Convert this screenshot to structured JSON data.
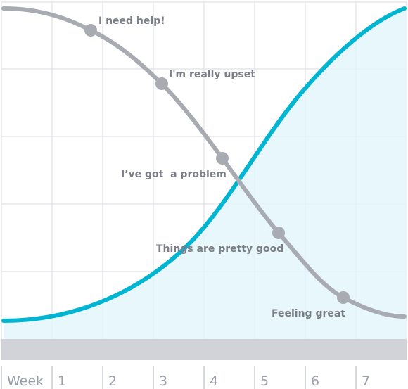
{
  "x_labels": [
    "Week",
    "1",
    "2",
    "3",
    "4",
    "5",
    "6",
    "7"
  ],
  "annotations": [
    "I need help!",
    "I'm really upset",
    "I’ve got  a problem",
    "Things are pretty good",
    "Feeling great"
  ]
}
